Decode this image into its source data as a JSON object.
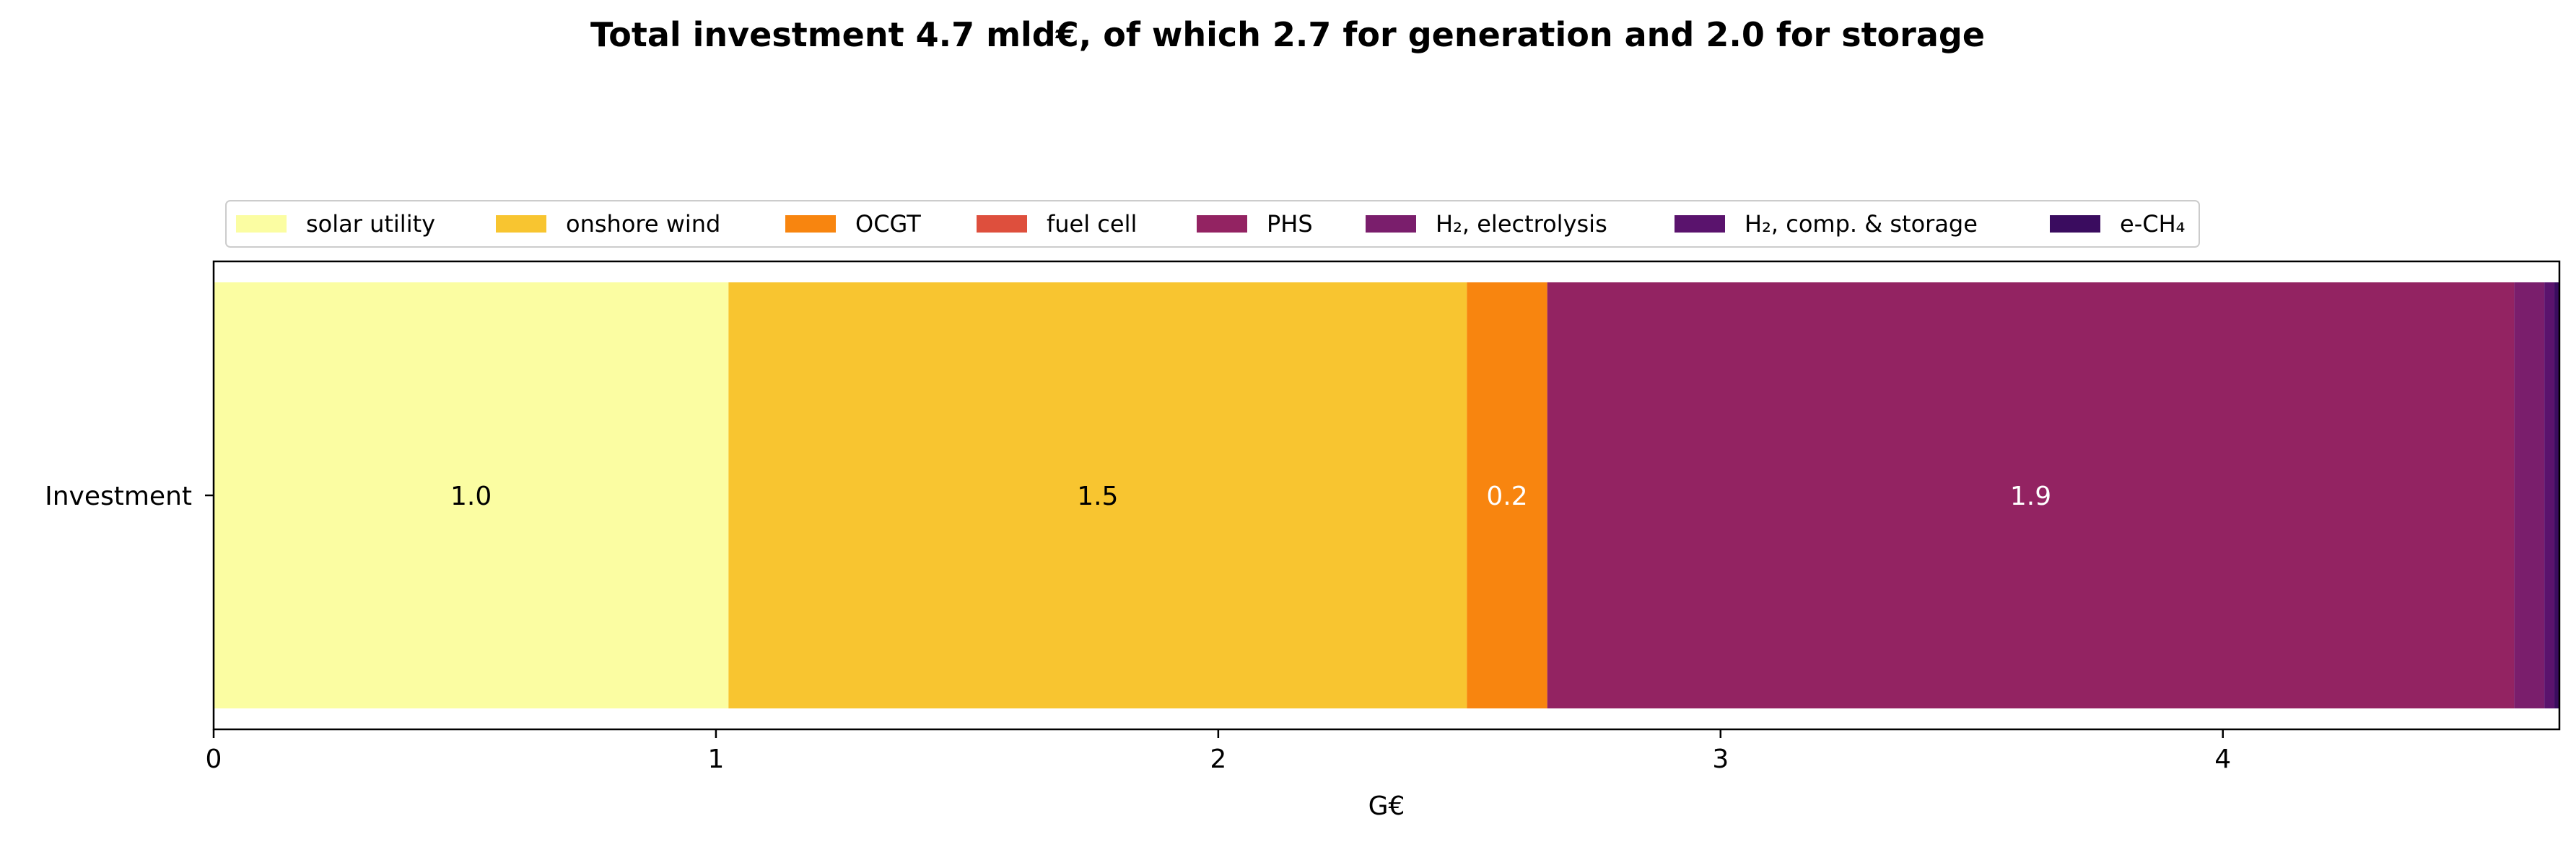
{
  "chart_data": {
    "type": "bar",
    "orientation": "horizontal",
    "stacked": true,
    "title": "Total investment 4.7 mld€, of which 2.7 for generation and 2.0 for storage",
    "xlabel": "G€",
    "ylabel": "",
    "categories": [
      "Investment"
    ],
    "xlim": [
      0,
      4.67
    ],
    "xticks": [
      0,
      1,
      2,
      3,
      4
    ],
    "grid": false,
    "legend_position": "top",
    "series": [
      {
        "name": "solar utility",
        "values": [
          1.025
        ],
        "color": "#fbfda2",
        "label": "1.0",
        "label_color": "#000000"
      },
      {
        "name": "onshore wind",
        "values": [
          1.47
        ],
        "color": "#f8c530",
        "label": "1.5",
        "label_color": "#000000"
      },
      {
        "name": "OCGT",
        "values": [
          0.16
        ],
        "color": "#f8850f",
        "label": "0.2",
        "label_color": "#ffffff"
      },
      {
        "name": "fuel cell",
        "values": [
          0.0
        ],
        "color": "#de4f3d",
        "label": "",
        "label_color": "#ffffff"
      },
      {
        "name": "PHS",
        "values": [
          1.925
        ],
        "color": "#932362",
        "label": "1.9",
        "label_color": "#ffffff"
      },
      {
        "name": "H₂, electrolysis",
        "values": [
          0.06
        ],
        "color": "#7a1e6c",
        "label": "",
        "label_color": "#ffffff"
      },
      {
        "name": "H₂, comp. & storage",
        "values": [
          0.02
        ],
        "color": "#5a136d",
        "label": "",
        "label_color": "#ffffff"
      },
      {
        "name": "e-CH₄",
        "values": [
          0.01
        ],
        "color": "#3a0c5f",
        "label": "",
        "label_color": "#ffffff"
      }
    ]
  }
}
